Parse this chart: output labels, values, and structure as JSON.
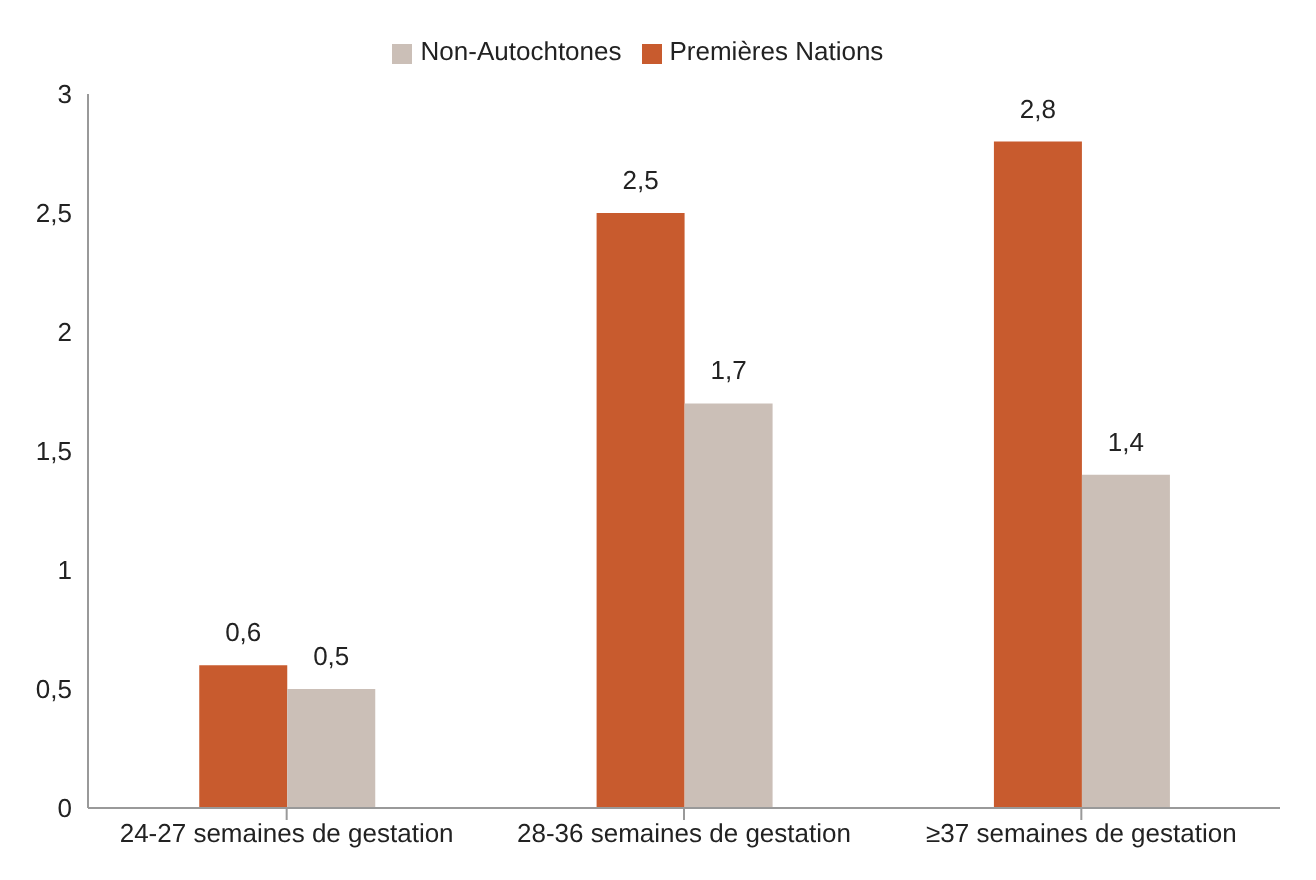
{
  "chart_data": {
    "type": "bar",
    "categories": [
      "24-27 semaines de gestation",
      "28-36 semaines de gestation",
      "≥37 semaines de gestation"
    ],
    "series": [
      {
        "name": "Premières Nations",
        "color": "#c85b2e",
        "values": [
          0.6,
          2.5,
          2.8
        ],
        "value_labels": [
          "0,6",
          "2,5",
          "2,8"
        ]
      },
      {
        "name": "Non-Autochtones",
        "color": "#cbbfb7",
        "values": [
          0.5,
          1.7,
          1.4
        ],
        "value_labels": [
          "0,5",
          "1,7",
          "1,4"
        ]
      }
    ],
    "ylim": [
      0,
      3
    ],
    "yticks": [
      0,
      {
        "value": 0.5,
        "label": "0,5"
      },
      1,
      {
        "value": 1.5,
        "label": "1,5"
      },
      2,
      {
        "value": 2.5,
        "label": "2,5"
      },
      3
    ],
    "grid": false,
    "legend": "top"
  }
}
